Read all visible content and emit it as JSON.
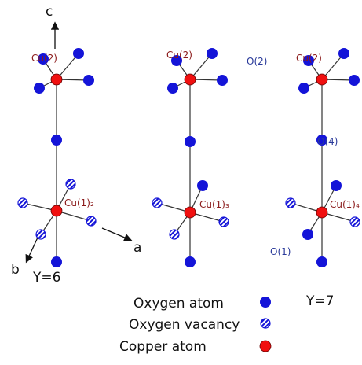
{
  "axes": {
    "c": "c",
    "a": "a",
    "b": "b"
  },
  "panels": [
    {
      "label": "Y=6",
      "cu2": "Cu(2)",
      "cu1": "Cu(1)₂"
    },
    {
      "cu2": "Cu(2)",
      "cu1": "Cu(1)₃"
    },
    {
      "label": "Y=7",
      "cu2": "Cu(2)",
      "cu1": "Cu(1)₄",
      "o2": "O(2)",
      "o4": "O(4)",
      "o1": "O(1)"
    }
  ],
  "legend": [
    {
      "label": "Oxygen atom"
    },
    {
      "label": "Oxygen vacancy"
    },
    {
      "label": "Copper atom"
    }
  ]
}
